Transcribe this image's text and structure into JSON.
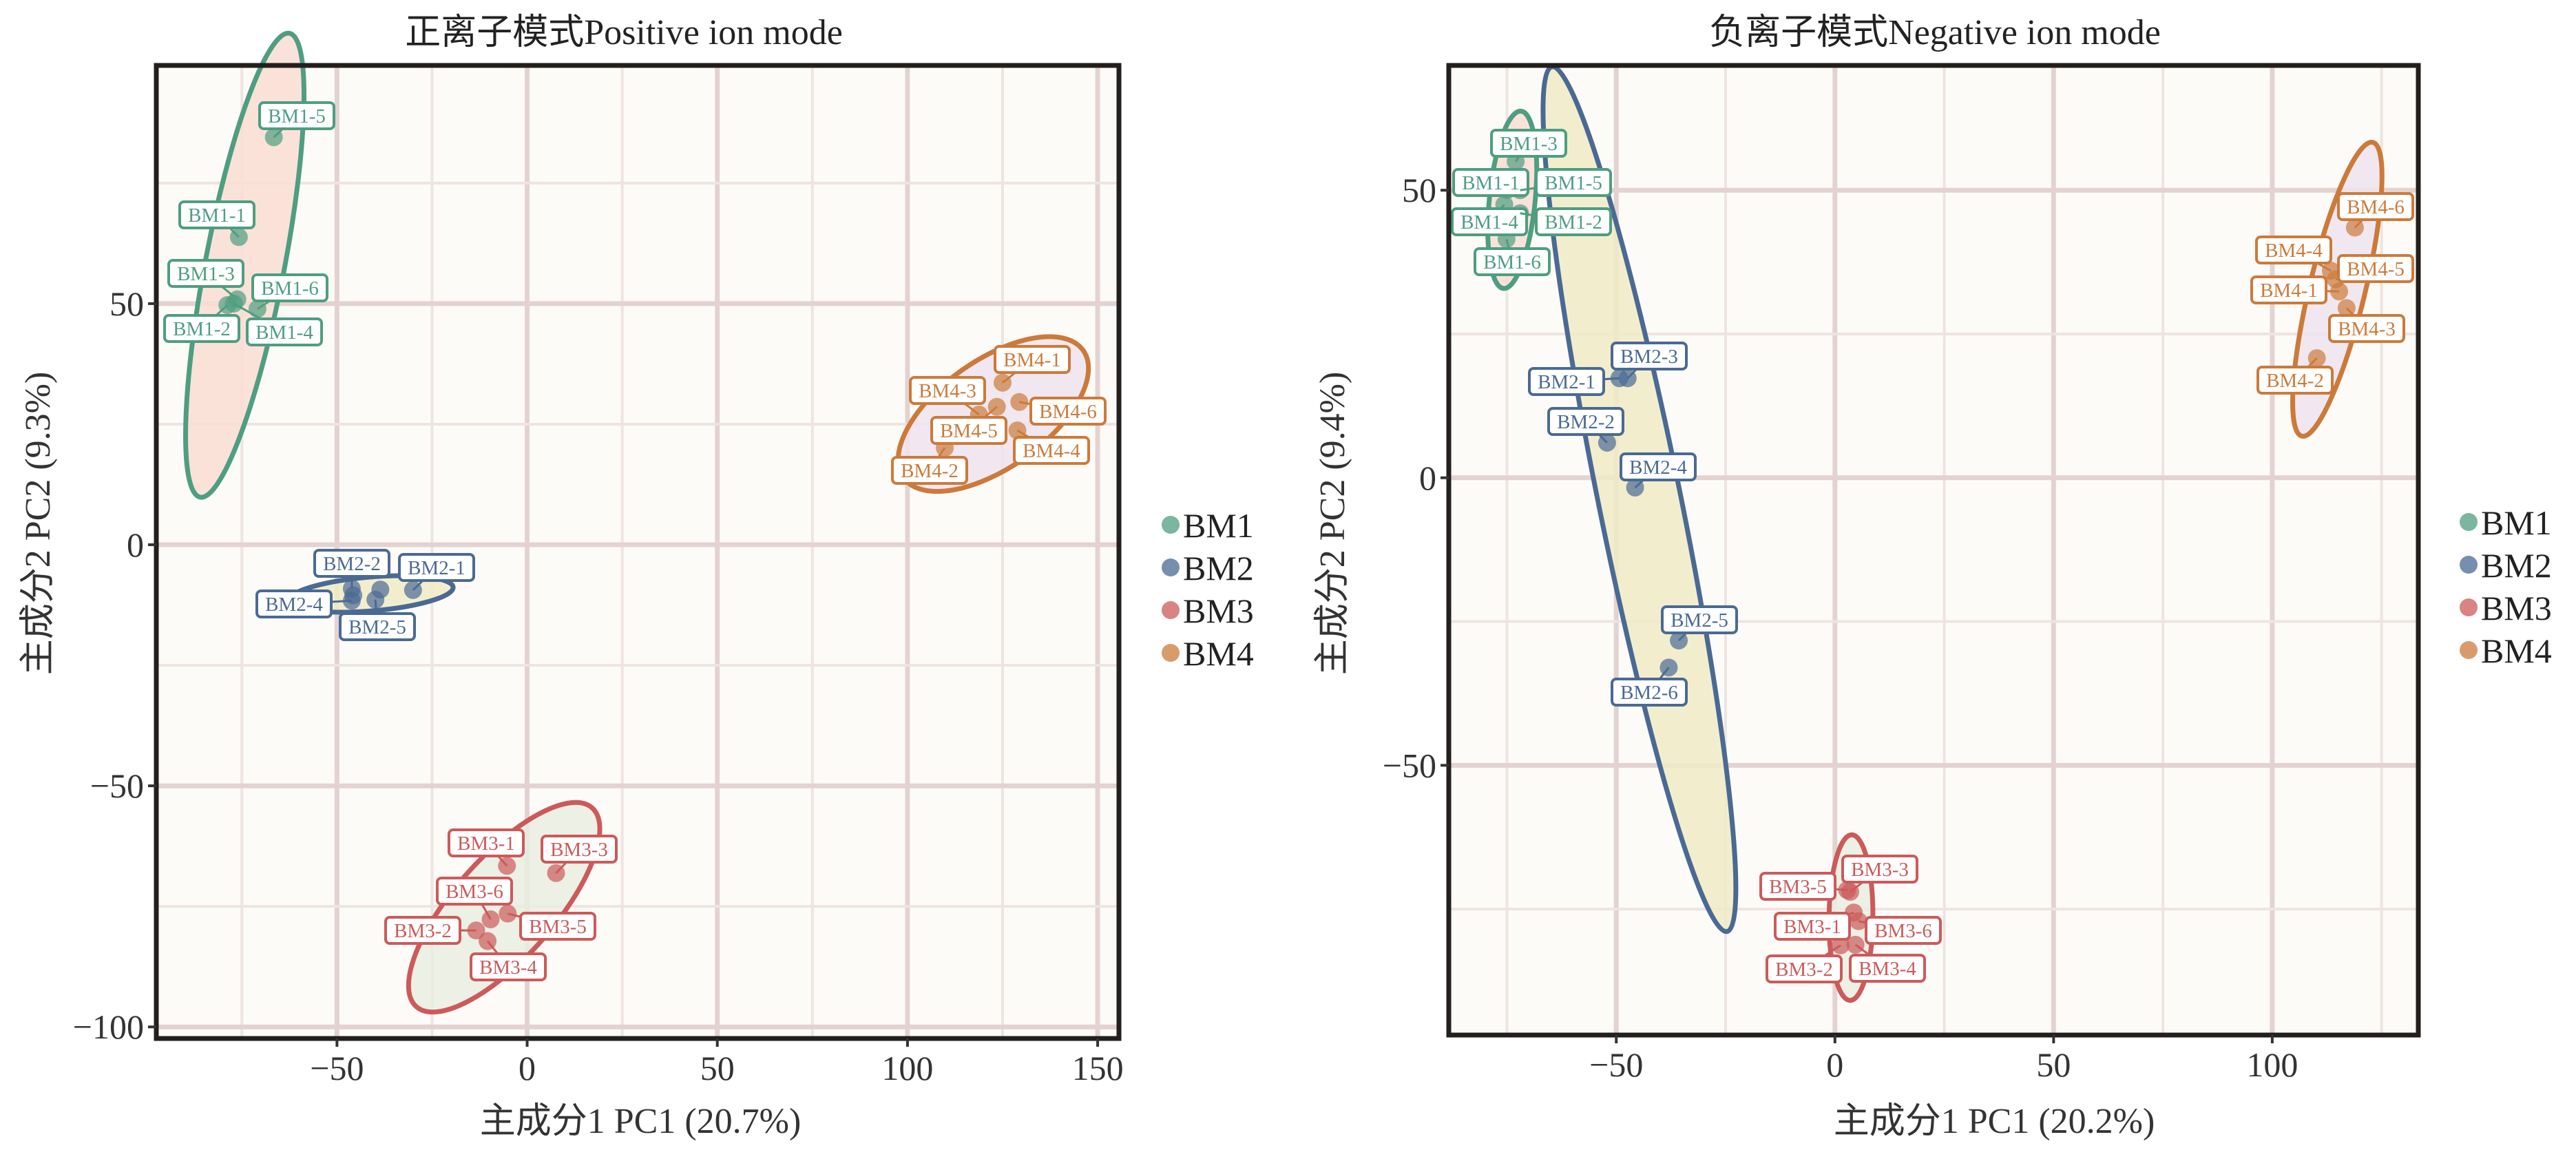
{
  "chart_data": [
    {
      "type": "scatter",
      "title": "正离子模式Positive ion mode",
      "xlabel": "主成分1 PC1 (20.7%)",
      "ylabel": "主成分2 PC2 (9.3%)",
      "xlim": [
        -97.5,
        155.6
      ],
      "ylim": [
        -102.4,
        99.4
      ],
      "xticks": [
        -50,
        0,
        50,
        100,
        150
      ],
      "yticks": [
        -100,
        -50,
        0,
        50
      ],
      "grid": true,
      "legend": "right",
      "series": [
        {
          "name": "BM1",
          "color": "#4e9e80",
          "fill": "#f9ddd3",
          "points": [
            {
              "label": "BM1-5",
              "x": -66.6,
              "y": 84.5
            },
            {
              "label": "BM1-1",
              "x": -75.8,
              "y": 63.8
            },
            {
              "label": "BM1-3",
              "x": -76.2,
              "y": 50.9
            },
            {
              "label": "BM1-6",
              "x": -70.9,
              "y": 48.9
            },
            {
              "label": "BM1-2",
              "x": -78.8,
              "y": 49.7
            },
            {
              "label": "BM1-4",
              "x": -77.1,
              "y": 50.0
            }
          ]
        },
        {
          "name": "BM2",
          "color": "#4a6a94",
          "fill": "#f0ebc6",
          "points": [
            {
              "label": "BM2-2",
              "x": -46.1,
              "y": -9.1
            },
            {
              "label": "BM2-1",
              "x": -30.0,
              "y": -9.4
            },
            {
              "label": "BM2-4",
              "x": -46.1,
              "y": -11.6
            },
            {
              "label": "BM2-5",
              "x": -39.9,
              "y": -11.4
            },
            {
              "label": "",
              "x": -38.6,
              "y": -9.3
            },
            {
              "label": "",
              "x": -45.7,
              "y": -10.5
            }
          ]
        },
        {
          "name": "BM3",
          "color": "#cc5a5a",
          "fill": "#e9ede2",
          "points": [
            {
              "label": "BM3-1",
              "x": -5.3,
              "y": -66.6
            },
            {
              "label": "BM3-3",
              "x": 7.6,
              "y": -68.1
            },
            {
              "label": "BM3-6",
              "x": -9.6,
              "y": -77.7
            },
            {
              "label": "BM3-5",
              "x": -5.1,
              "y": -76.5
            },
            {
              "label": "BM3-2",
              "x": -13.4,
              "y": -80.0
            },
            {
              "label": "BM3-4",
              "x": -10.4,
              "y": -82.2
            }
          ]
        },
        {
          "name": "BM4",
          "color": "#cc7a3a",
          "fill": "#efe3ef",
          "points": [
            {
              "label": "BM4-1",
              "x": 125.0,
              "y": 33.6
            },
            {
              "label": "BM4-3",
              "x": 118.8,
              "y": 27.0
            },
            {
              "label": "BM4-6",
              "x": 129.4,
              "y": 29.6
            },
            {
              "label": "BM4-5",
              "x": 123.5,
              "y": 28.6
            },
            {
              "label": "BM4-4",
              "x": 128.9,
              "y": 23.7
            },
            {
              "label": "BM4-2",
              "x": 109.8,
              "y": 20.1
            }
          ]
        }
      ]
    },
    {
      "type": "scatter",
      "title": "负离子模式Negative ion mode",
      "xlabel": "主成分1 PC1 (20.2%)",
      "ylabel": "主成分2 PC2 (9.4%)",
      "xlim": [
        -88.3,
        133.4
      ],
      "ylim": [
        -96.9,
        71.7
      ],
      "xticks": [
        -50,
        0,
        50,
        100
      ],
      "yticks": [
        -50,
        0,
        50
      ],
      "grid": true,
      "legend": "right",
      "series": [
        {
          "name": "BM1",
          "color": "#4e9e80",
          "fill": "#f9ddd3",
          "points": [
            {
              "label": "BM1-3",
              "x": -73.0,
              "y": 55.0
            },
            {
              "label": "BM1-1",
              "x": -75.0,
              "y": 50.0
            },
            {
              "label": "BM1-5",
              "x": -72.0,
              "y": 50.0
            },
            {
              "label": "BM1-4",
              "x": -75.6,
              "y": 47.5
            },
            {
              "label": "BM1-2",
              "x": -72.0,
              "y": 46.0
            },
            {
              "label": "BM1-6",
              "x": -75.1,
              "y": 41.5
            }
          ]
        },
        {
          "name": "BM2",
          "color": "#4a6a94",
          "fill": "#f0ebc6",
          "points": [
            {
              "label": "BM2-3",
              "x": -47.4,
              "y": 17.3
            },
            {
              "label": "BM2-1",
              "x": -49.3,
              "y": 17.3
            },
            {
              "label": "BM2-2",
              "x": -52.1,
              "y": 6.1
            },
            {
              "label": "BM2-4",
              "x": -45.7,
              "y": -1.7
            },
            {
              "label": "BM2-5",
              "x": -35.7,
              "y": -28.3
            },
            {
              "label": "BM2-6",
              "x": -38.0,
              "y": -33.0
            }
          ]
        },
        {
          "name": "BM3",
          "color": "#cc5a5a",
          "fill": "#e9ede2",
          "points": [
            {
              "label": "BM3-3",
              "x": 3.5,
              "y": -72.0
            },
            {
              "label": "BM3-5",
              "x": 2.8,
              "y": -71.7
            },
            {
              "label": "BM3-1",
              "x": 4.3,
              "y": -75.6
            },
            {
              "label": "BM3-6",
              "x": 5.4,
              "y": -77.1
            },
            {
              "label": "BM3-2",
              "x": 1.3,
              "y": -81.3
            },
            {
              "label": "BM3-4",
              "x": 4.7,
              "y": -81.2
            }
          ]
        },
        {
          "name": "BM4",
          "color": "#cc7a3a",
          "fill": "#efe3ef",
          "points": [
            {
              "label": "BM4-6",
              "x": 118.9,
              "y": 43.5
            },
            {
              "label": "BM4-4",
              "x": 113.4,
              "y": 36.0
            },
            {
              "label": "BM4-5",
              "x": 114.5,
              "y": 34.5
            },
            {
              "label": "BM4-1",
              "x": 115.3,
              "y": 32.4
            },
            {
              "label": "BM4-3",
              "x": 117.0,
              "y": 29.5
            },
            {
              "label": "BM4-2",
              "x": 110.2,
              "y": 20.8
            }
          ]
        }
      ]
    }
  ]
}
